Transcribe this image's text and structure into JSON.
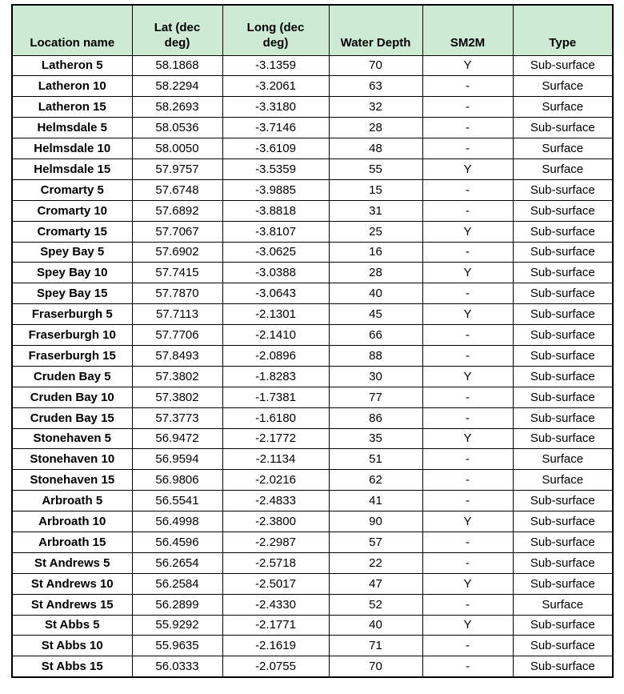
{
  "colors": {
    "header_bg": "#CDEBD2",
    "border": "#000000",
    "row_bg": "#FFFFFF",
    "text": "#000000"
  },
  "table": {
    "columns": [
      {
        "key": "location",
        "label": "Location name"
      },
      {
        "key": "lat",
        "label": "Lat (dec deg)"
      },
      {
        "key": "long",
        "label": "Long (dec deg)"
      },
      {
        "key": "water_depth",
        "label": "Water Depth"
      },
      {
        "key": "sm2m",
        "label": "SM2M"
      },
      {
        "key": "type",
        "label": "Type"
      }
    ],
    "rows": [
      [
        "Latheron 5",
        "58.1868",
        "-3.1359",
        "70",
        "Y",
        "Sub-surface"
      ],
      [
        "Latheron 10",
        "58.2294",
        "-3.2061",
        "63",
        "-",
        "Surface"
      ],
      [
        "Latheron 15",
        "58.2693",
        "-3.3180",
        "32",
        "-",
        "Surface"
      ],
      [
        "Helmsdale 5",
        "58.0536",
        "-3.7146",
        "28",
        "-",
        "Sub-surface"
      ],
      [
        "Helmsdale 10",
        "58.0050",
        "-3.6109",
        "48",
        "-",
        "Surface"
      ],
      [
        "Helmsdale 15",
        "57.9757",
        "-3.5359",
        "55",
        "Y",
        "Surface"
      ],
      [
        "Cromarty 5",
        "57.6748",
        "-3.9885",
        "15",
        "-",
        "Sub-surface"
      ],
      [
        "Cromarty 10",
        "57.6892",
        "-3.8818",
        "31",
        "-",
        "Sub-surface"
      ],
      [
        "Cromarty 15",
        "57.7067",
        "-3.8107",
        "25",
        "Y",
        "Sub-surface"
      ],
      [
        "Spey Bay 5",
        "57.6902",
        "-3.0625",
        "16",
        "-",
        "Sub-surface"
      ],
      [
        "Spey Bay 10",
        "57.7415",
        "-3.0388",
        "28",
        "Y",
        "Sub-surface"
      ],
      [
        "Spey Bay 15",
        "57.7870",
        "-3.0643",
        "40",
        "-",
        "Sub-surface"
      ],
      [
        "Fraserburgh 5",
        "57.7113",
        "-2.1301",
        "45",
        "Y",
        "Sub-surface"
      ],
      [
        "Fraserburgh 10",
        "57.7706",
        "-2.1410",
        "66",
        "-",
        "Sub-surface"
      ],
      [
        "Fraserburgh 15",
        "57.8493",
        "-2.0896",
        "88",
        "-",
        "Sub-surface"
      ],
      [
        "Cruden Bay 5",
        "57.3802",
        "-1.8283",
        "30",
        "Y",
        "Sub-surface"
      ],
      [
        "Cruden Bay 10",
        "57.3802",
        "-1.7381",
        "77",
        "-",
        "Sub-surface"
      ],
      [
        "Cruden Bay 15",
        "57.3773",
        "-1.6180",
        "86",
        "-",
        "Sub-surface"
      ],
      [
        "Stonehaven 5",
        "56.9472",
        "-2.1772",
        "35",
        "Y",
        "Sub-surface"
      ],
      [
        "Stonehaven 10",
        "56.9594",
        "-2.1134",
        "51",
        "-",
        "Surface"
      ],
      [
        "Stonehaven 15",
        "56.9806",
        "-2.0216",
        "62",
        "-",
        "Surface"
      ],
      [
        "Arbroath 5",
        "56.5541",
        "-2.4833",
        "41",
        "-",
        "Sub-surface"
      ],
      [
        "Arbroath 10",
        "56.4998",
        "-2.3800",
        "90",
        "Y",
        "Sub-surface"
      ],
      [
        "Arbroath 15",
        "56.4596",
        "-2.2987",
        "57",
        "-",
        "Sub-surface"
      ],
      [
        "St Andrews 5",
        "56.2654",
        "-2.5718",
        "22",
        "-",
        "Sub-surface"
      ],
      [
        "St Andrews 10",
        "56.2584",
        "-2.5017",
        "47",
        "Y",
        "Sub-surface"
      ],
      [
        "St Andrews 15",
        "56.2899",
        "-2.4330",
        "52",
        "-",
        "Surface"
      ],
      [
        "St Abbs 5",
        "55.9292",
        "-2.1771",
        "40",
        "Y",
        "Sub-surface"
      ],
      [
        "St Abbs 10",
        "55.9635",
        "-2.1619",
        "71",
        "-",
        "Sub-surface"
      ],
      [
        "St Abbs 15",
        "56.0333",
        "-2.0755",
        "70",
        "-",
        "Sub-surface"
      ]
    ]
  }
}
